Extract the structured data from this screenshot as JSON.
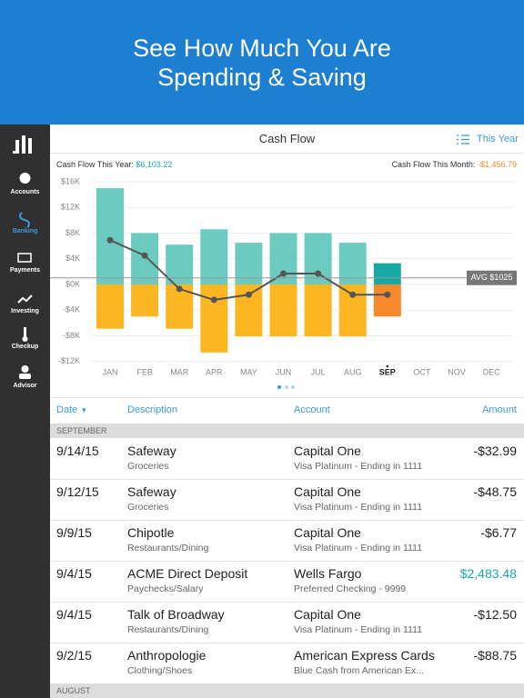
{
  "banner": {
    "title_lines": [
      "See How Much You Are",
      "Spending & Saving"
    ]
  },
  "sidebar": {
    "items": [
      "Accounts",
      "Banking",
      "Payments",
      "Investing",
      "Checkup",
      "Advisor"
    ]
  },
  "panel": {
    "title": "Cash Flow",
    "filter": "This Year",
    "year_label": "Cash Flow This Year:",
    "year_value": "$6,103.22",
    "month_label": "Cash Flow This Month:",
    "month_value": "-$1,456.79"
  },
  "chart_data": {
    "type": "bar",
    "categories": [
      "JAN",
      "FEB",
      "MAR",
      "APR",
      "MAY",
      "JUN",
      "JUL",
      "AUG",
      "SEP",
      "OCT",
      "NOV",
      "DEC"
    ],
    "current_category": "SEP",
    "series": [
      {
        "color": "#6ccbc0",
        "current_color": "#16a9a3",
        "values": [
          15,
          8,
          6.2,
          8.6,
          6.5,
          8,
          8,
          6.5,
          3.3,
          null,
          null,
          null
        ]
      },
      {
        "color": "#fbb622",
        "current_color": "#f68a2b",
        "values": [
          -6.9,
          -5,
          -6.9,
          -10.6,
          -8.1,
          -8.1,
          -8.1,
          -8.1,
          -5,
          null,
          null,
          null
        ]
      },
      {
        "type": "line",
        "color": "#555555",
        "values": [
          6.9,
          4.5,
          -0.7,
          -2.4,
          -1.6,
          1.7,
          1.7,
          -1.6,
          -1.6,
          null,
          null,
          null
        ]
      }
    ],
    "average": {
      "value": 1.025,
      "label": "AVG $1025"
    },
    "ylim": [
      -12,
      16
    ],
    "yticks": [
      {
        "value": 16,
        "label": "$16K"
      },
      {
        "value": 12,
        "label": "$12K"
      },
      {
        "value": 8,
        "label": "$8K"
      },
      {
        "value": 4,
        "label": "$4K"
      },
      {
        "value": 0,
        "label": "$0K"
      },
      {
        "value": -4,
        "label": "-$4K"
      },
      {
        "value": -8,
        "label": "-$8K"
      },
      {
        "value": -12,
        "label": "-$12K"
      }
    ],
    "grid": true
  },
  "table": {
    "columns": [
      "Date",
      "Description",
      "Account",
      "Amount"
    ],
    "sections": [
      {
        "title": "SEPTEMBER",
        "rows": [
          {
            "date": "9/14/15",
            "description": "Safeway",
            "category": "Groceries",
            "account": "Capital One",
            "account_detail": "Visa Platinum - Ending in 1111",
            "amount": "-$32.99"
          },
          {
            "date": "9/12/15",
            "description": "Safeway",
            "category": "Groceries",
            "account": "Capital One",
            "account_detail": "Visa Platinum - Ending in 1111",
            "amount": "-$48.75"
          },
          {
            "date": "9/9/15",
            "description": "Chipotle",
            "category": "Restaurants/Dining",
            "account": "Capital One",
            "account_detail": "Visa Platinum - Ending in 1111",
            "amount": "-$6.77"
          },
          {
            "date": "9/4/15",
            "description": "ACME Direct Deposit",
            "category": "Paychecks/Salary",
            "account": "Wells Fargo",
            "account_detail": "Preferred Checking - 9999",
            "amount": "$2,483.48"
          },
          {
            "date": "9/4/15",
            "description": "Talk of Broadway",
            "category": "Restaurants/Dining",
            "account": "Capital One",
            "account_detail": "Visa Platinum - Ending in 1111",
            "amount": "-$12.50"
          },
          {
            "date": "9/2/15",
            "description": "Anthropologie",
            "category": "Clothing/Shoes",
            "account": "American Express Cards",
            "account_detail": "Blue Cash from American Ex...",
            "amount": "-$88.75"
          }
        ]
      },
      {
        "title": "AUGUST",
        "rows": []
      }
    ]
  }
}
